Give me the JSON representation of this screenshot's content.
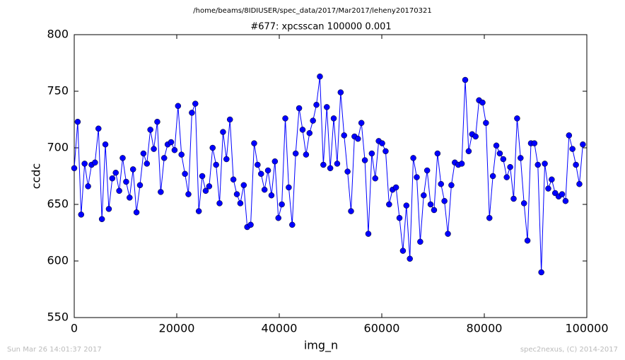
{
  "chart_data": {
    "type": "line",
    "header": "/home/beams/8IDIUSER/spec_data/2017/Mar2017/leheny20170321",
    "title": "#677: xpcsscan 100000 0.001",
    "xlabel": "img_n",
    "ylabel": "ccdc",
    "footer_left": "Sun Mar 26 14:01:37 2017",
    "footer_right": "spec2nexus, (C) 2014-2017",
    "color": "#0000ff",
    "x": [
      0,
      675,
      1350,
      2025,
      2700,
      3375,
      4050,
      4725,
      5400,
      6075,
      6750,
      7425,
      8100,
      8775,
      9450,
      10125,
      10800,
      11475,
      12150,
      12825,
      13500,
      14175,
      14850,
      15525,
      16200,
      16875,
      17550,
      18225,
      18900,
      19575,
      20250,
      20925,
      21600,
      22275,
      22950,
      23625,
      24300,
      24975,
      25650,
      26325,
      27000,
      27675,
      28350,
      29025,
      29700,
      30375,
      31050,
      31725,
      32400,
      33075,
      33750,
      34425,
      35100,
      35775,
      36450,
      37125,
      37800,
      38475,
      39150,
      39825,
      40500,
      41175,
      41850,
      42525,
      43200,
      43875,
      44550,
      45225,
      45900,
      46575,
      47250,
      47925,
      48600,
      49275,
      49950,
      50625,
      51300,
      51975,
      52650,
      53325,
      54000,
      54675,
      55350,
      56025,
      56700,
      57375,
      58050,
      58725,
      59400,
      60075,
      60750,
      61425,
      62100,
      62775,
      63450,
      64125,
      64800,
      65475,
      66150,
      66825,
      67500,
      68175,
      68850,
      69525,
      70200,
      70875,
      71550,
      72225,
      72900,
      73575,
      74250,
      74925,
      75600,
      76275,
      76950,
      77625,
      78300,
      78975,
      79650,
      80325,
      81000,
      81675,
      82350,
      83025,
      83700,
      84375,
      85050,
      85725,
      86400,
      87075,
      87750,
      88425,
      89100,
      89775,
      90450,
      91125,
      91800,
      92475,
      93150,
      93825,
      94500,
      95175,
      95850,
      96525,
      97200,
      97875,
      98550,
      99225
    ],
    "values": [
      682,
      723,
      641,
      686,
      666,
      685,
      687,
      717,
      637,
      703,
      646,
      673,
      678,
      662,
      691,
      670,
      656,
      681,
      643,
      667,
      695,
      686,
      716,
      699,
      723,
      661,
      691,
      703,
      705,
      698,
      737,
      694,
      677,
      659,
      731,
      739,
      644,
      675,
      662,
      666,
      700,
      685,
      651,
      714,
      690,
      725,
      672,
      659,
      651,
      667,
      630,
      632,
      704,
      685,
      677,
      663,
      680,
      658,
      688,
      638,
      650,
      726,
      665,
      632,
      695,
      735,
      716,
      694,
      713,
      724,
      738,
      763,
      685,
      736,
      682,
      726,
      686,
      749,
      711,
      679,
      644,
      710,
      708,
      722,
      689,
      624,
      695,
      673,
      706,
      704,
      697,
      650,
      663,
      665,
      638,
      609,
      649,
      602,
      691,
      674,
      617,
      658,
      680,
      650,
      645,
      695,
      668,
      653,
      624,
      667,
      687,
      685,
      686,
      760,
      697,
      712,
      710,
      742,
      740,
      722,
      638,
      675,
      702,
      695,
      690,
      674,
      683,
      655,
      726,
      691,
      651,
      618,
      704,
      704,
      685,
      590,
      686,
      664,
      672,
      660,
      657,
      659,
      653,
      711,
      699,
      685,
      668,
      703
    ],
    "xlim": [
      0,
      100000
    ],
    "xticks": [
      0,
      20000,
      40000,
      60000,
      80000,
      100000
    ],
    "ylim": [
      550,
      800
    ],
    "yticks": [
      550,
      600,
      650,
      700,
      750,
      800
    ]
  }
}
